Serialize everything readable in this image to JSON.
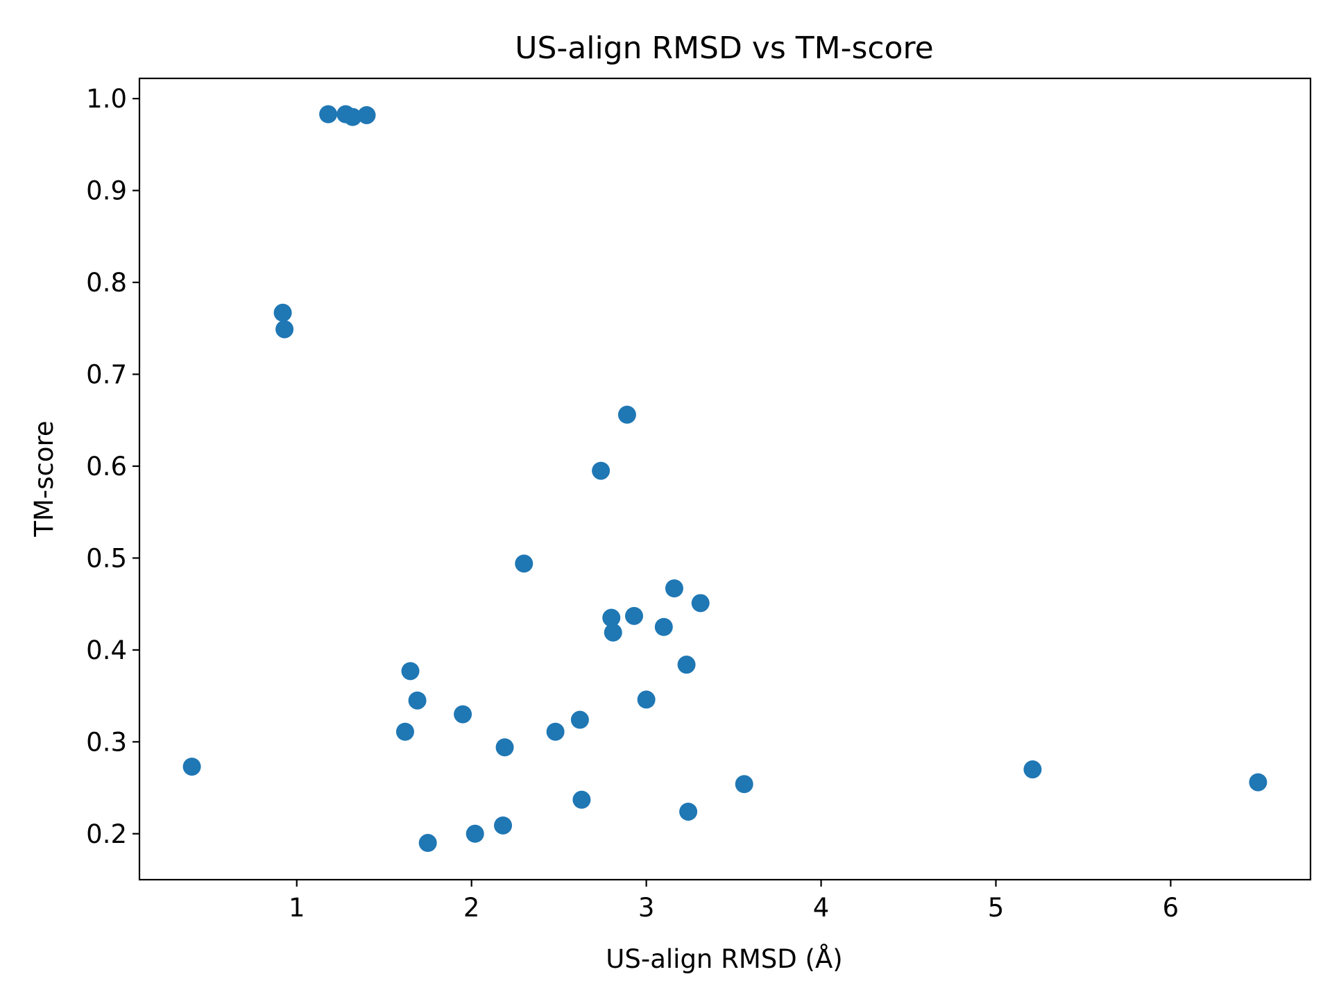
{
  "chart_data": {
    "type": "scatter",
    "title": "US-align RMSD vs TM-score",
    "xlabel": "US-align RMSD (Å)",
    "ylabel": "TM-score",
    "xlim": [
      0.1,
      6.8
    ],
    "ylim": [
      0.15,
      1.022
    ],
    "xticks": [
      1,
      2,
      3,
      4,
      5,
      6
    ],
    "xtick_labels": [
      "1",
      "2",
      "3",
      "4",
      "5",
      "6"
    ],
    "yticks": [
      0.2,
      0.3,
      0.4,
      0.5,
      0.6,
      0.7,
      0.8,
      0.9,
      1.0
    ],
    "ytick_labels": [
      "0.2",
      "0.3",
      "0.4",
      "0.5",
      "0.6",
      "0.7",
      "0.8",
      "0.9",
      "1.0"
    ],
    "grid": false,
    "marker_color": "#1f77b4",
    "series": [
      {
        "points": [
          {
            "x": 0.4,
            "y": 0.273
          },
          {
            "x": 0.92,
            "y": 0.767
          },
          {
            "x": 0.93,
            "y": 0.749
          },
          {
            "x": 1.18,
            "y": 0.983
          },
          {
            "x": 1.28,
            "y": 0.983
          },
          {
            "x": 1.32,
            "y": 0.98
          },
          {
            "x": 1.4,
            "y": 0.982
          },
          {
            "x": 1.62,
            "y": 0.311
          },
          {
            "x": 1.65,
            "y": 0.377
          },
          {
            "x": 1.69,
            "y": 0.345
          },
          {
            "x": 1.75,
            "y": 0.19
          },
          {
            "x": 1.95,
            "y": 0.33
          },
          {
            "x": 2.02,
            "y": 0.2
          },
          {
            "x": 2.18,
            "y": 0.209
          },
          {
            "x": 2.19,
            "y": 0.294
          },
          {
            "x": 2.3,
            "y": 0.494
          },
          {
            "x": 2.48,
            "y": 0.311
          },
          {
            "x": 2.62,
            "y": 0.324
          },
          {
            "x": 2.63,
            "y": 0.237
          },
          {
            "x": 2.74,
            "y": 0.595
          },
          {
            "x": 2.8,
            "y": 0.435
          },
          {
            "x": 2.81,
            "y": 0.419
          },
          {
            "x": 2.89,
            "y": 0.656
          },
          {
            "x": 2.93,
            "y": 0.437
          },
          {
            "x": 3.0,
            "y": 0.346
          },
          {
            "x": 3.1,
            "y": 0.425
          },
          {
            "x": 3.16,
            "y": 0.467
          },
          {
            "x": 3.23,
            "y": 0.384
          },
          {
            "x": 3.24,
            "y": 0.224
          },
          {
            "x": 3.31,
            "y": 0.451
          },
          {
            "x": 3.56,
            "y": 0.254
          },
          {
            "x": 5.21,
            "y": 0.27
          },
          {
            "x": 6.5,
            "y": 0.256
          }
        ]
      }
    ]
  }
}
